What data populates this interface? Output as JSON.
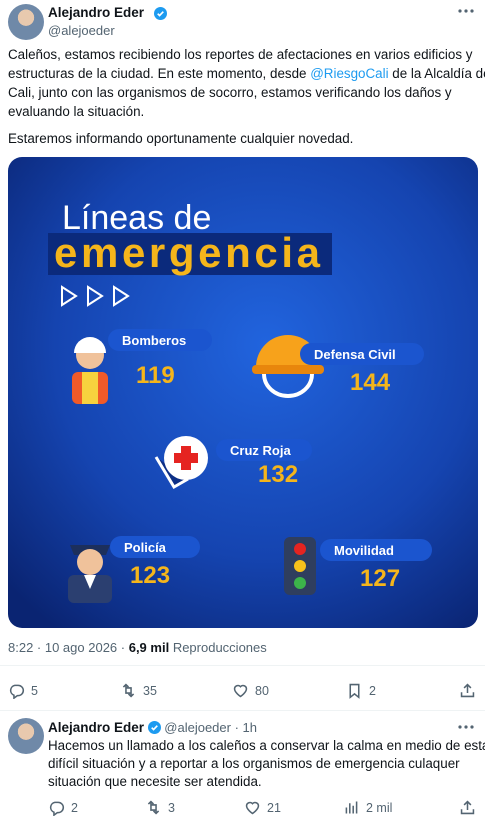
{
  "tweet": {
    "author": {
      "name": "Alejandro Eder",
      "handle": "@alejoeder"
    },
    "text": [
      "Caleños, estamos recibiendo los reportes de afectaciones en varios edificios y",
      {
        "before": "estructuras de la ciudad. En este momento, desde ",
        "mention": "@RiesgoCali",
        "after": " de la Alcaldía de"
      },
      "Cali, junto con las organismos de socorro, estamos verificando los daños y",
      "evaluando la situación."
    ],
    "text_2": "Estaremos informando oportunamente cualquier novedad.",
    "image": {
      "title_1": "Líneas de",
      "title_2": "emergencia",
      "items": [
        {
          "name": "Bomberos",
          "number": "119"
        },
        {
          "name": "Defensa Civil",
          "number": "144"
        },
        {
          "name": "Cruz Roja",
          "number": "132"
        },
        {
          "name": "Policía",
          "number": "123"
        },
        {
          "name": "Movilidad",
          "number": "127"
        }
      ]
    },
    "meta": {
      "timestamp": "8:22 · 10 ago 2026 ·",
      "views": "6,9 mil",
      "views_label": "Reproducciones"
    },
    "stats": {
      "replies": "5",
      "retweets": "35",
      "likes": "80",
      "bookmarks": "2"
    }
  },
  "reply": {
    "author": {
      "name": "Alejandro Eder",
      "handle": "@alejoeder",
      "age": "· 1h"
    },
    "text": [
      "Hacemos un llamado a los caleños a conservar la calma en medio de esta",
      "difícil situación y a reportar a los organismos de emergencia culaquer",
      "situación que necesite ser atendida."
    ],
    "stats": {
      "replies": "2",
      "retweets": "3",
      "likes": "21",
      "views": "2 mil"
    }
  }
}
